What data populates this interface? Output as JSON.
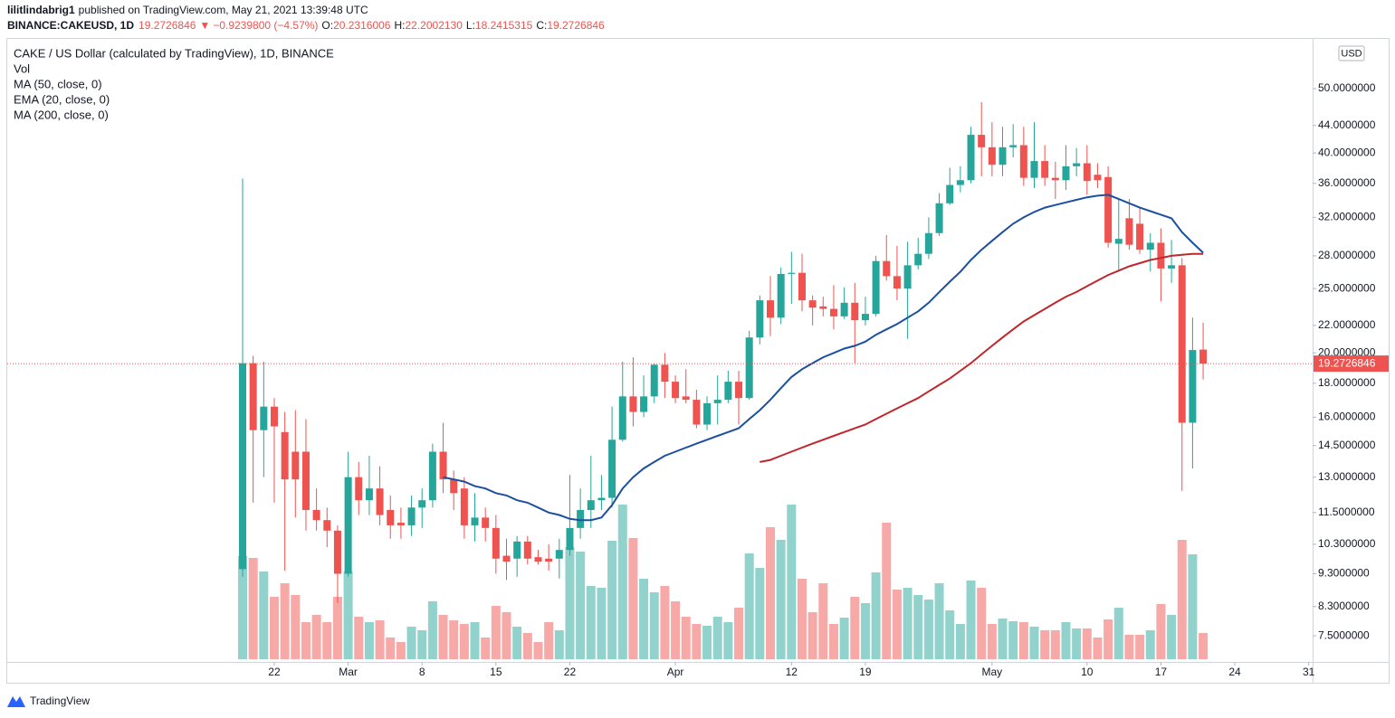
{
  "header": {
    "author": "lilitlindabrig1",
    "published": "published on TradingView.com, May 21, 2021 13:39:48 UTC",
    "symbol": "BINANCE:CAKEUSD, 1D",
    "price": "19.2726846",
    "arrow": "▼",
    "change": "−0.9239800 (−4.57%)",
    "open_label": "O:",
    "open": "20.2316006",
    "high_label": "H:",
    "high": "22.2002130",
    "low_label": "L:",
    "low": "18.2415315",
    "close_label": "C:",
    "close": "19.2726846"
  },
  "footer": {
    "brand": "TradingView"
  },
  "chart_data": {
    "type": "candlestick",
    "title": "CAKE / US Dollar (calculated by TradingView), 1D, BINANCE",
    "currency": "USD",
    "log_scale": true,
    "grid": false,
    "up_color": "#26a69a",
    "down_color": "#ef5350",
    "x": [
      "2021-02-19",
      "2021-02-20",
      "2021-02-21",
      "2021-02-22",
      "2021-02-23",
      "2021-02-24",
      "2021-02-25",
      "2021-02-26",
      "2021-02-27",
      "2021-02-28",
      "2021-03-01",
      "2021-03-02",
      "2021-03-03",
      "2021-03-04",
      "2021-03-05",
      "2021-03-06",
      "2021-03-07",
      "2021-03-08",
      "2021-03-09",
      "2021-03-10",
      "2021-03-11",
      "2021-03-12",
      "2021-03-13",
      "2021-03-14",
      "2021-03-15",
      "2021-03-16",
      "2021-03-17",
      "2021-03-18",
      "2021-03-19",
      "2021-03-20",
      "2021-03-21",
      "2021-03-22",
      "2021-03-23",
      "2021-03-24",
      "2021-03-25",
      "2021-03-26",
      "2021-03-27",
      "2021-03-28",
      "2021-03-29",
      "2021-03-30",
      "2021-03-31",
      "2021-04-01",
      "2021-04-02",
      "2021-04-03",
      "2021-04-04",
      "2021-04-05",
      "2021-04-06",
      "2021-04-07",
      "2021-04-08",
      "2021-04-09",
      "2021-04-10",
      "2021-04-11",
      "2021-04-12",
      "2021-04-13",
      "2021-04-14",
      "2021-04-15",
      "2021-04-16",
      "2021-04-17",
      "2021-04-18",
      "2021-04-19",
      "2021-04-20",
      "2021-04-21",
      "2021-04-22",
      "2021-04-23",
      "2021-04-24",
      "2021-04-25",
      "2021-04-26",
      "2021-04-27",
      "2021-04-28",
      "2021-04-29",
      "2021-04-30",
      "2021-05-01",
      "2021-05-02",
      "2021-05-03",
      "2021-05-04",
      "2021-05-05",
      "2021-05-06",
      "2021-05-07",
      "2021-05-08",
      "2021-05-09",
      "2021-05-10",
      "2021-05-11",
      "2021-05-12",
      "2021-05-13",
      "2021-05-14",
      "2021-05-15",
      "2021-05-16",
      "2021-05-17",
      "2021-05-18",
      "2021-05-19",
      "2021-05-20",
      "2021-05-21"
    ],
    "open": [
      9.45,
      19.3,
      15.3,
      16.6,
      15.2,
      14.2,
      14.2,
      11.6,
      11.2,
      10.8,
      9.3,
      13.0,
      12.0,
      12.5,
      11.6,
      11.1,
      11.0,
      11.7,
      12.0,
      14.2,
      12.9,
      12.5,
      11.0,
      11.3,
      10.9,
      9.9,
      9.8,
      10.4,
      9.85,
      9.8,
      9.8,
      10.1,
      10.9,
      11.6,
      12.0,
      12.1,
      14.8,
      17.2,
      16.3,
      17.2,
      19.2,
      18.1,
      17.2,
      17.0,
      15.6,
      16.8,
      17.0,
      18.1,
      17.1,
      21.1,
      24.0,
      22.6,
      26.3,
      26.4,
      24.0,
      23.5,
      23.3,
      22.7,
      23.8,
      22.4,
      22.9,
      27.5,
      26.1,
      25.0,
      27.1,
      28.2,
      30.3,
      33.6,
      35.8,
      36.4,
      42.6,
      40.8,
      38.4,
      40.8,
      41.1,
      36.7,
      38.9,
      36.7,
      36.4,
      38.2,
      38.6,
      37.1,
      36.8,
      29.2,
      31.9,
      31.3,
      28.6,
      29.3,
      26.8,
      27.1,
      15.7,
      20.2316006
    ],
    "high": [
      36.6,
      19.8,
      19.4,
      17.1,
      16.3,
      16.4,
      15.9,
      12.5,
      11.7,
      11.0,
      14.2,
      13.7,
      14.0,
      13.5,
      12.2,
      11.7,
      12.2,
      12.5,
      14.6,
      15.7,
      13.3,
      13.0,
      12.3,
      11.7,
      11.4,
      10.5,
      10.6,
      10.6,
      10.1,
      10.3,
      10.5,
      13.1,
      12.5,
      14.0,
      13.1,
      16.6,
      19.4,
      19.7,
      18.5,
      19.3,
      20.0,
      18.5,
      18.9,
      17.6,
      17.2,
      18.5,
      18.8,
      18.8,
      21.6,
      24.4,
      26.1,
      26.9,
      28.4,
      28.2,
      24.4,
      24.3,
      25.3,
      25.1,
      25.5,
      24.3,
      28.0,
      30.1,
      29.0,
      29.4,
      29.8,
      32.0,
      34.8,
      38.0,
      38.2,
      43.8,
      47.7,
      44.5,
      43.8,
      44.2,
      43.8,
      44.5,
      41.1,
      38.8,
      41.1,
      40.7,
      41.1,
      38.6,
      38.2,
      34.1,
      34.1,
      33.2,
      30.3,
      30.8,
      29.6,
      27.8,
      22.6,
      22.200213
    ],
    "low": [
      9.2,
      11.9,
      13.0,
      11.9,
      9.4,
      11.3,
      10.8,
      10.8,
      10.2,
      8.4,
      9.2,
      11.4,
      11.4,
      11.0,
      10.5,
      10.5,
      10.6,
      10.9,
      11.7,
      12.3,
      11.6,
      10.5,
      10.4,
      10.4,
      9.3,
      9.1,
      9.2,
      9.6,
      9.6,
      9.4,
      9.15,
      9.9,
      10.5,
      10.9,
      11.6,
      11.7,
      14.7,
      15.5,
      16.0,
      16.8,
      17.1,
      16.8,
      16.8,
      15.4,
      15.3,
      15.6,
      16.8,
      15.6,
      17.0,
      20.6,
      21.2,
      22.1,
      23.7,
      23.1,
      22.0,
      22.7,
      21.7,
      22.5,
      19.3,
      22.0,
      22.7,
      25.7,
      24.0,
      21.0,
      26.7,
      27.7,
      30.0,
      33.4,
      34.9,
      36.0,
      36.9,
      36.9,
      36.9,
      39.4,
      35.7,
      35.4,
      35.7,
      34.1,
      35.2,
      36.9,
      34.6,
      35.4,
      28.8,
      26.5,
      28.6,
      28.2,
      26.5,
      23.9,
      25.5,
      12.4,
      13.4,
      18.2415315
    ],
    "close": [
      19.3,
      15.3,
      16.6,
      15.5,
      12.9,
      12.9,
      11.6,
      11.2,
      10.8,
      9.3,
      13.0,
      12.0,
      12.5,
      11.4,
      11.0,
      11.0,
      11.7,
      12.0,
      14.2,
      12.9,
      12.3,
      11.0,
      11.3,
      10.9,
      9.8,
      9.7,
      10.4,
      9.8,
      9.7,
      9.7,
      10.1,
      10.9,
      11.6,
      12.0,
      12.1,
      14.8,
      17.2,
      16.3,
      17.2,
      19.2,
      18.1,
      17.1,
      17.0,
      15.6,
      16.8,
      17.0,
      18.1,
      17.1,
      21.1,
      24.0,
      22.6,
      26.3,
      26.4,
      24.0,
      23.4,
      23.3,
      22.7,
      23.8,
      22.4,
      22.9,
      27.5,
      26.1,
      25.0,
      27.1,
      28.2,
      30.3,
      33.6,
      35.8,
      36.4,
      42.6,
      40.8,
      38.4,
      40.8,
      41.1,
      36.7,
      38.9,
      36.7,
      36.4,
      38.2,
      38.6,
      36.3,
      36.4,
      29.3,
      29.7,
      29.1,
      28.6,
      29.3,
      26.8,
      27.1,
      15.7,
      20.2,
      19.2726846
    ],
    "volume": {
      "name": "Vol",
      "values": [
        114,
        112,
        97,
        69,
        84,
        71,
        41,
        49,
        41,
        69,
        97,
        47,
        41,
        43,
        24,
        19,
        36,
        32,
        64,
        49,
        43,
        39,
        41,
        24,
        59,
        52,
        36,
        29,
        19,
        41,
        32,
        124,
        119,
        81,
        79,
        131,
        171,
        134,
        89,
        74,
        81,
        64,
        47,
        39,
        37,
        47,
        41,
        57,
        117,
        101,
        146,
        132,
        171,
        89,
        52,
        84,
        39,
        46,
        69,
        62,
        96,
        151,
        77,
        79,
        71,
        66,
        84,
        54,
        39,
        87,
        79,
        39,
        45,
        42,
        41,
        36,
        32,
        32,
        41,
        34,
        34,
        24,
        44,
        57,
        27,
        27,
        32,
        61,
        49,
        132,
        116,
        29
      ]
    },
    "series": [
      {
        "name": "MA (50, close, 0)",
        "color": "#c0262b",
        "values": [
          null,
          null,
          null,
          null,
          null,
          null,
          null,
          null,
          null,
          null,
          null,
          null,
          null,
          null,
          null,
          null,
          null,
          null,
          null,
          null,
          null,
          null,
          null,
          null,
          null,
          null,
          null,
          null,
          null,
          null,
          null,
          null,
          null,
          null,
          null,
          null,
          null,
          null,
          null,
          null,
          null,
          null,
          null,
          null,
          null,
          null,
          null,
          null,
          null,
          13.7,
          13.8,
          14.0,
          14.2,
          14.4,
          14.6,
          14.8,
          15.0,
          15.2,
          15.4,
          15.6,
          15.9,
          16.2,
          16.5,
          16.8,
          17.1,
          17.5,
          17.9,
          18.3,
          18.8,
          19.3,
          19.9,
          20.5,
          21.1,
          21.7,
          22.3,
          22.8,
          23.3,
          23.8,
          24.3,
          24.7,
          25.2,
          25.7,
          26.2,
          26.6,
          27.0,
          27.3,
          27.6,
          27.8,
          28.0,
          28.1,
          28.2,
          28.2
        ]
      },
      {
        "name": "EMA (20, close, 0)",
        "color": "#1c4fa0",
        "values": [
          null,
          null,
          null,
          null,
          null,
          null,
          null,
          null,
          null,
          null,
          null,
          null,
          null,
          null,
          null,
          null,
          null,
          null,
          null,
          13.0,
          12.9,
          12.8,
          12.6,
          12.5,
          12.3,
          12.2,
          12.0,
          11.9,
          11.7,
          11.5,
          11.4,
          11.25,
          11.2,
          11.2,
          11.3,
          11.8,
          12.5,
          13.0,
          13.4,
          13.7,
          14.0,
          14.2,
          14.4,
          14.6,
          14.8,
          15.0,
          15.2,
          15.4,
          15.9,
          16.4,
          17.0,
          17.7,
          18.4,
          18.9,
          19.3,
          19.7,
          20.0,
          20.3,
          20.5,
          20.8,
          21.3,
          21.7,
          22.1,
          22.6,
          23.1,
          23.8,
          24.7,
          25.6,
          26.5,
          27.6,
          28.6,
          29.5,
          30.4,
          31.3,
          32.0,
          32.6,
          33.1,
          33.4,
          33.7,
          34.0,
          34.3,
          34.5,
          34.6,
          34.1,
          33.6,
          33.1,
          32.7,
          32.3,
          31.9,
          30.4,
          29.3,
          28.3
        ]
      },
      {
        "name": "MA (200, close, 0)",
        "color": "#9c27b0",
        "values": [
          null,
          null,
          null,
          null,
          null,
          null,
          null,
          null,
          null,
          null,
          null,
          null,
          null,
          null,
          null,
          null,
          null,
          null,
          null,
          null,
          null,
          null,
          null,
          null,
          null,
          null,
          null,
          null,
          null,
          null,
          null,
          null,
          null,
          null,
          null,
          null,
          null,
          null,
          null,
          null,
          null,
          null,
          null,
          null,
          null,
          null,
          null,
          null,
          null,
          null,
          null,
          null,
          null,
          null,
          null,
          null,
          null,
          null,
          null,
          null,
          null,
          null,
          null,
          null,
          null,
          null,
          null,
          null,
          null,
          null,
          null,
          null,
          null,
          null,
          null,
          null,
          null,
          null,
          null,
          null,
          null,
          null,
          null,
          null,
          null,
          null,
          null,
          null,
          null,
          null,
          null,
          null
        ]
      }
    ],
    "ylim": [
      6.85,
      59.6
    ],
    "yticks": [
      {
        "value": 7.5,
        "label": "7.5000000"
      },
      {
        "value": 8.3,
        "label": "8.3000000"
      },
      {
        "value": 9.3,
        "label": "9.3000000"
      },
      {
        "value": 10.3,
        "label": "10.3000000"
      },
      {
        "value": 11.5,
        "label": "11.5000000"
      },
      {
        "value": 13,
        "label": "13.0000000"
      },
      {
        "value": 14.5,
        "label": "14.5000000"
      },
      {
        "value": 16,
        "label": "16.0000000"
      },
      {
        "value": 18,
        "label": "18.0000000"
      },
      {
        "value": 20,
        "label": "20.0000000"
      },
      {
        "value": 22,
        "label": "22.0000000"
      },
      {
        "value": 25,
        "label": "25.0000000"
      },
      {
        "value": 28,
        "label": "28.0000000"
      },
      {
        "value": 32,
        "label": "32.0000000"
      },
      {
        "value": 36,
        "label": "36.0000000"
      },
      {
        "value": 40,
        "label": "40.0000000"
      },
      {
        "value": 44,
        "label": "44.0000000"
      },
      {
        "value": 50,
        "label": "50.0000000"
      }
    ],
    "xticks": [
      {
        "value": "2021-02-22",
        "label": "22"
      },
      {
        "value": "2021-03-01",
        "label": "Mar"
      },
      {
        "value": "2021-03-08",
        "label": "8"
      },
      {
        "value": "2021-03-15",
        "label": "15"
      },
      {
        "value": "2021-03-22",
        "label": "22"
      },
      {
        "value": "2021-04-01",
        "label": "Apr"
      },
      {
        "value": "2021-04-12",
        "label": "12"
      },
      {
        "value": "2021-04-19",
        "label": "19"
      },
      {
        "value": "2021-05-01",
        "label": "May"
      },
      {
        "value": "2021-05-10",
        "label": "10"
      },
      {
        "value": "2021-05-17",
        "label": "17"
      },
      {
        "value": "2021-05-24",
        "label": "24"
      },
      {
        "value": "2021-05-31",
        "label": "31"
      }
    ],
    "last_price": {
      "value": 19.2726846,
      "label": "19.2726846"
    }
  }
}
